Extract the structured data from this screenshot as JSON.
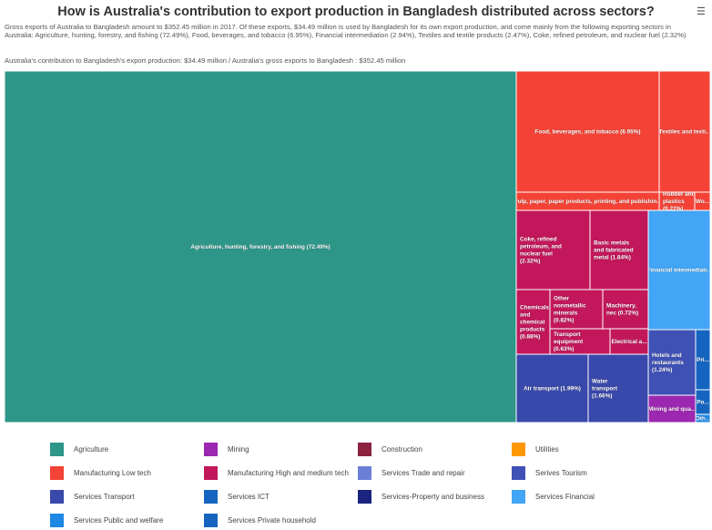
{
  "header": {
    "title": "How is Australia's contribution to export production in Bangladesh distributed across sectors?",
    "subtitle": "Gross exports of Australia to Bangladesh amount to $352.45 million in 2017. Of these exports, $34.49 million is used by Bangladesh for its own export production, and come mainly from the following exporting sectors in Australia: Agriculture, hunting, forestry, and fishing (72.49%), Food, beverages, and tobacco (6.95%), Financial intermediation (2.94%), Textiles and textile products (2.47%), Coke, refined petroleum, and nuclear fuel (2.32%)",
    "note": "Australia's contribution to Bangladesh's export production: $34.49 million / Australia's gross exports to Bangladesh : $352.45 million",
    "menu_icon": "hamburger-menu-icon"
  },
  "chart_data": {
    "type": "treemap",
    "unit": "% of contribution",
    "nodes": [
      {
        "label": "Agriculture, hunting, forestry, and fishing (72.49%)",
        "value": 72.49,
        "group": "Agriculture"
      },
      {
        "label": "Food, beverages, and tobacco (6.95%)",
        "value": 6.95,
        "group": "Manufacturing Low tech"
      },
      {
        "label": "Textiles and texti...",
        "value": 2.47,
        "group": "Manufacturing Low tech"
      },
      {
        "label": "Pulp, paper, paper products, printing, and publishin...",
        "value": null,
        "group": "Manufacturing Low tech"
      },
      {
        "label": "Rubber and plastics (0.22%)",
        "value": 0.22,
        "group": "Manufacturing Low tech"
      },
      {
        "label": "Wo...",
        "value": null,
        "group": "Manufacturing Low tech"
      },
      {
        "label": "Coke, refined petroleum, and nuclear fuel (2.32%)",
        "value": 2.32,
        "group": "Manufacturing High and medium tech"
      },
      {
        "label": "Basic metals and fabricated metal (1.84%)",
        "value": 1.84,
        "group": "Manufacturing High and medium tech"
      },
      {
        "label": "Chemicals and chemical products (0.88%)",
        "value": 0.88,
        "group": "Manufacturing High and medium tech"
      },
      {
        "label": "Other nonmetallic minerals (0.82%)",
        "value": 0.82,
        "group": "Manufacturing High and medium tech"
      },
      {
        "label": "Machinery, nec (0.72%)",
        "value": 0.72,
        "group": "Manufacturing High and medium tech"
      },
      {
        "label": "Transport equipment (0.63%)",
        "value": 0.63,
        "group": "Manufacturing High and medium tech"
      },
      {
        "label": "Electrical a...",
        "value": null,
        "group": "Manufacturing High and medium tech"
      },
      {
        "label": "Financial intermediati...",
        "value": 2.94,
        "group": "Services Financial"
      },
      {
        "label": "Air transport (1.99%)",
        "value": 1.99,
        "group": "Services Transport"
      },
      {
        "label": "Water transport (1.66%)",
        "value": 1.66,
        "group": "Services Transport"
      },
      {
        "label": "Hotels and restaurants (1.24%)",
        "value": 1.24,
        "group": "Serives Tourism"
      },
      {
        "label": "Mining and qua...",
        "value": null,
        "group": "Mining"
      },
      {
        "label": "Pri...",
        "value": null,
        "group": "Services Private household"
      },
      {
        "label": "Po...",
        "value": null,
        "group": "Services ICT"
      },
      {
        "label": "Oth...",
        "value": null,
        "group": "Services Public and welfare"
      }
    ],
    "legend": [
      {
        "name": "Agriculture",
        "color": "#2e9688"
      },
      {
        "name": "Mining",
        "color": "#9c27b0"
      },
      {
        "name": "Construction",
        "color": "#8c2341"
      },
      {
        "name": "Utilities",
        "color": "#ff9800"
      },
      {
        "name": "Manufacturing Low tech",
        "color": "#f44336"
      },
      {
        "name": "Manufacturing High and medium tech",
        "color": "#c2185b"
      },
      {
        "name": "Services Trade and repair",
        "color": "#6b7fd7"
      },
      {
        "name": "Serives Tourism",
        "color": "#3f51b5"
      },
      {
        "name": "Services Transport",
        "color": "#3949ab"
      },
      {
        "name": "Services ICT",
        "color": "#1565c0"
      },
      {
        "name": "Services-Property and business",
        "color": "#1a237e"
      },
      {
        "name": "Services Financial",
        "color": "#42a5f5"
      },
      {
        "name": "Services Public and welfare",
        "color": "#1e88e5"
      },
      {
        "name": "Services Private household",
        "color": "#1565c0"
      }
    ],
    "legend_placement": "bottom"
  }
}
